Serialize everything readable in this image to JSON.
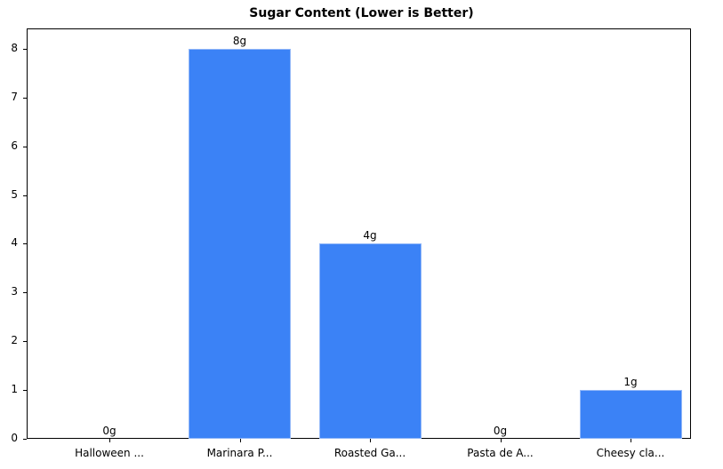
{
  "chart_data": {
    "type": "bar",
    "title": "Sugar Content (Lower is Better)",
    "xlabel": "",
    "ylabel": "",
    "categories": [
      "Halloween ...",
      "Marinara P...",
      "Roasted Ga...",
      "Pasta de A...",
      "Cheesy cla..."
    ],
    "values": [
      0,
      8,
      4,
      0,
      1
    ],
    "data_labels": [
      "0g",
      "8g",
      "4g",
      "0g",
      "1g"
    ],
    "ylim": [
      0,
      8.4
    ],
    "yticks": [
      "0",
      "1",
      "2",
      "3",
      "4",
      "5",
      "6",
      "7",
      "8"
    ],
    "grid": false,
    "legend": null,
    "bar_color": "#3b82f6"
  }
}
